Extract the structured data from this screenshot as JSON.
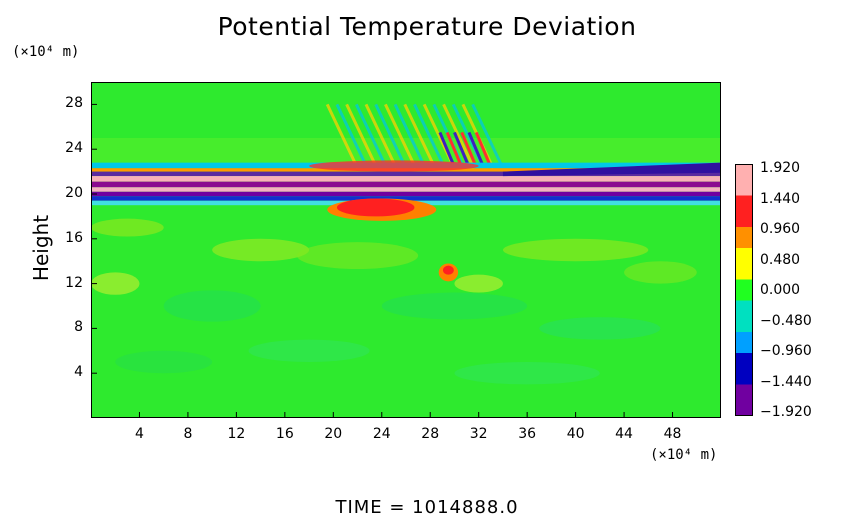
{
  "chart_data": {
    "type": "heatmap",
    "title": "Potential Temperature Deviation",
    "ylabel": "Height",
    "x_units": "(×10⁴ m)",
    "y_units": "(×10⁴ m)",
    "xlim": [
      0,
      52
    ],
    "ylim": [
      0,
      30
    ],
    "x_ticks": [
      4,
      8,
      12,
      16,
      20,
      24,
      28,
      32,
      36,
      40,
      44,
      48
    ],
    "y_ticks": [
      4,
      8,
      12,
      16,
      20,
      24,
      28
    ],
    "colorbar": {
      "values": [
        1.92,
        1.44,
        0.96,
        0.48,
        0.0,
        -0.48,
        -0.96,
        -1.44,
        -1.92
      ],
      "labels": [
        "1.920",
        "1.440",
        "0.960",
        "0.480",
        "0.000",
        "−0.480",
        "−0.960",
        "−1.440",
        "−1.920"
      ],
      "range": [
        -1.92,
        1.92
      ],
      "colors": [
        "#ffb0b0",
        "#ff2020",
        "#ff9000",
        "#ffff00",
        "#20ff20",
        "#00e0c0",
        "#00a0ff",
        "#0000c0",
        "#7000a0"
      ]
    },
    "features": [
      {
        "name": "dominant band",
        "y_range": [
          19.5,
          22.5
        ],
        "value_range": [
          -1.92,
          1.92
        ]
      },
      {
        "name": "gravity waves",
        "x_range": [
          24,
          34
        ],
        "y_range": [
          22,
          28
        ]
      },
      {
        "name": "warm anomaly",
        "x": 29.5,
        "y": 13,
        "value": 1.4
      }
    ],
    "background_value": 0.0
  },
  "footer": {
    "time_label": "TIME  =  1014888.0"
  }
}
